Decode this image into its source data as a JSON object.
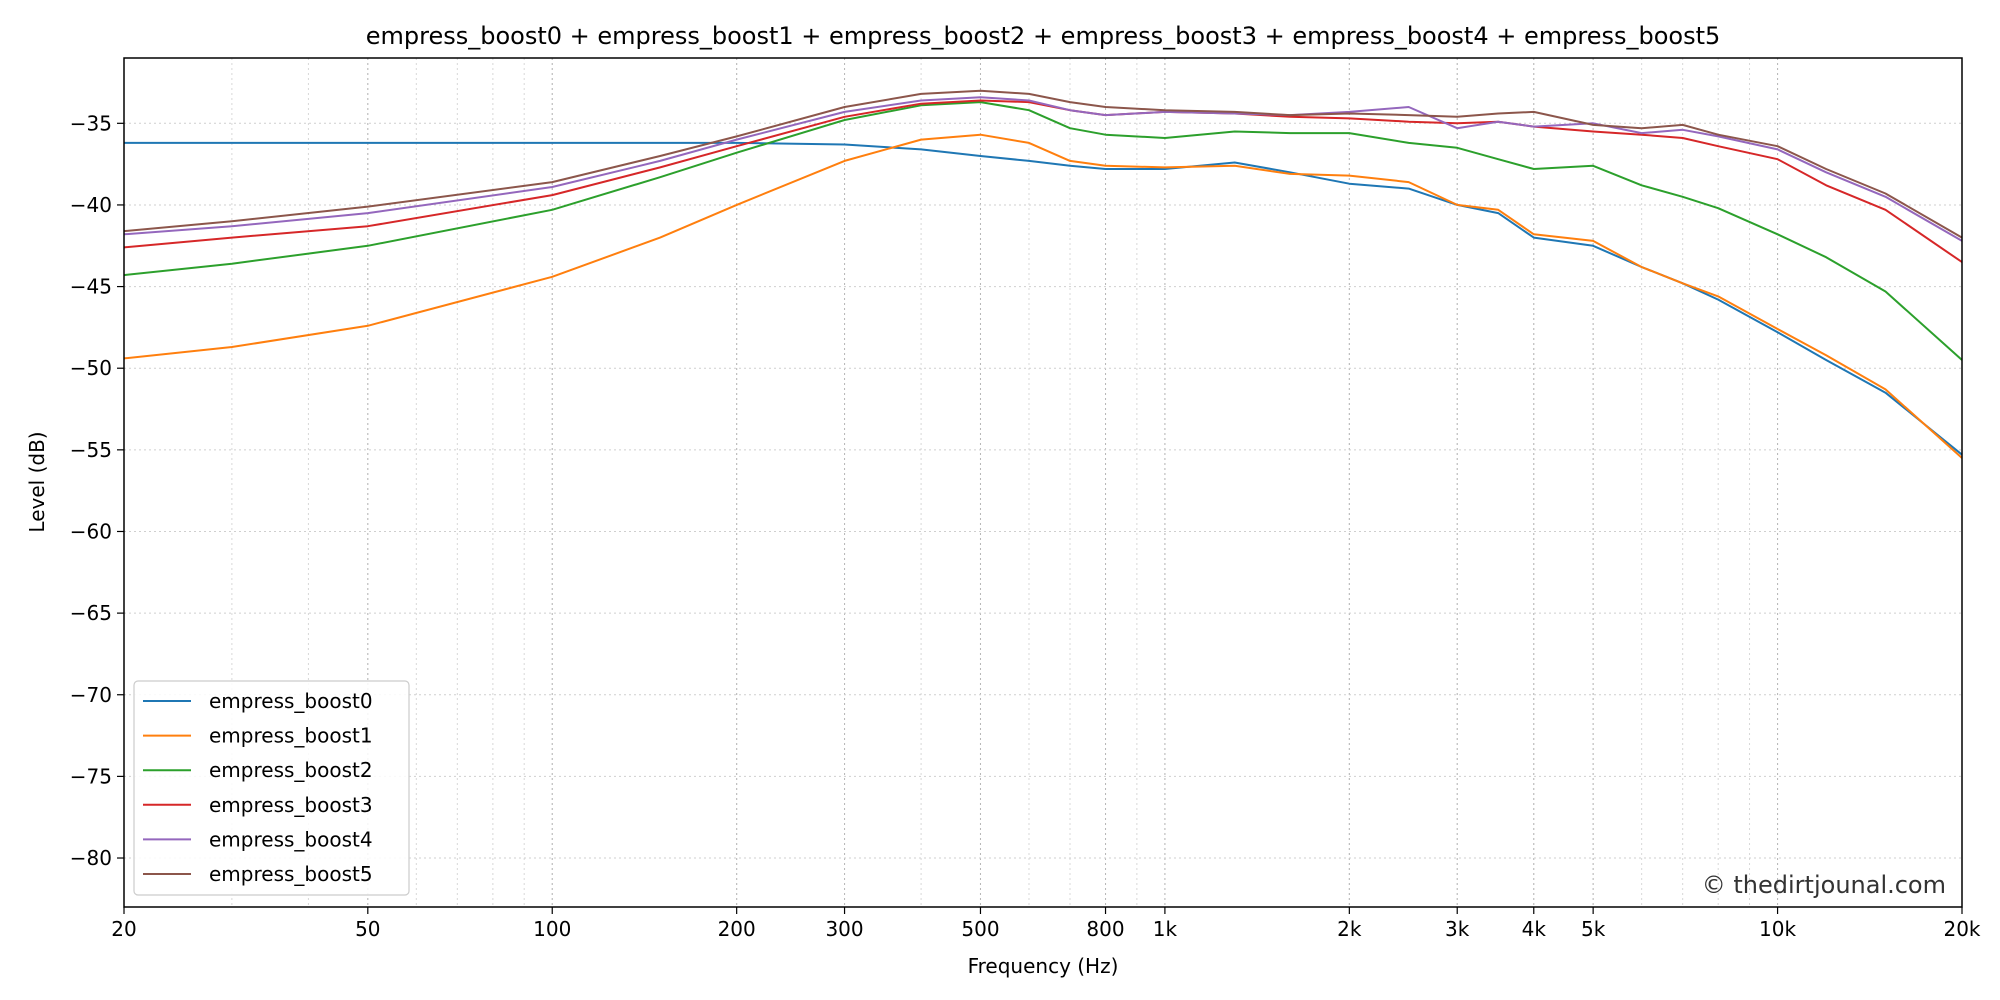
{
  "chart_data": {
    "type": "line",
    "title": "empress_boost0 + empress_boost1 + empress_boost2 + empress_boost3 + empress_boost4 + empress_boost5",
    "xlabel": "Frequency (Hz)",
    "ylabel": "Level (dB)",
    "x_scale": "log",
    "xlim": [
      20,
      20000
    ],
    "ylim": [
      -83,
      -31
    ],
    "x_ticks": [
      {
        "value": 20,
        "label": "20"
      },
      {
        "value": 50,
        "label": "50"
      },
      {
        "value": 100,
        "label": "100"
      },
      {
        "value": 200,
        "label": "200"
      },
      {
        "value": 300,
        "label": "300"
      },
      {
        "value": 500,
        "label": "500"
      },
      {
        "value": 800,
        "label": "800"
      },
      {
        "value": 1000,
        "label": "1k"
      },
      {
        "value": 2000,
        "label": "2k"
      },
      {
        "value": 3000,
        "label": "3k"
      },
      {
        "value": 4000,
        "label": "4k"
      },
      {
        "value": 5000,
        "label": "5k"
      },
      {
        "value": 10000,
        "label": "10k"
      },
      {
        "value": 20000,
        "label": "20k"
      }
    ],
    "y_ticks": [
      {
        "value": -35,
        "label": "−35"
      },
      {
        "value": -40,
        "label": "−40"
      },
      {
        "value": -45,
        "label": "−45"
      },
      {
        "value": -50,
        "label": "−50"
      },
      {
        "value": -55,
        "label": "−55"
      },
      {
        "value": -60,
        "label": "−60"
      },
      {
        "value": -65,
        "label": "−65"
      },
      {
        "value": -70,
        "label": "−70"
      },
      {
        "value": -75,
        "label": "−75"
      },
      {
        "value": -80,
        "label": "−80"
      }
    ],
    "grid": true,
    "legend_position": "lower-left",
    "watermark": "© thedirtjounal.com",
    "x": [
      20,
      30,
      50,
      100,
      150,
      200,
      300,
      400,
      500,
      600,
      700,
      800,
      1000,
      1300,
      1600,
      2000,
      2500,
      3000,
      3500,
      4000,
      5000,
      6000,
      7000,
      8000,
      10000,
      12000,
      15000,
      20000
    ],
    "series": [
      {
        "name": "empress_boost0",
        "color": "#1f77b4",
        "values": [
          -36.2,
          -36.2,
          -36.2,
          -36.2,
          -36.2,
          -36.2,
          -36.3,
          -36.6,
          -37.0,
          -37.3,
          -37.6,
          -37.8,
          -37.8,
          -37.4,
          -38.0,
          -38.7,
          -39.0,
          -40.0,
          -40.5,
          -42.0,
          -42.5,
          -43.8,
          -44.8,
          -45.8,
          -47.8,
          -49.5,
          -51.5,
          -55.3
        ]
      },
      {
        "name": "empress_boost1",
        "color": "#ff7f0e",
        "values": [
          -49.4,
          -48.7,
          -47.4,
          -44.4,
          -42.0,
          -40.0,
          -37.3,
          -36.0,
          -35.7,
          -36.2,
          -37.3,
          -37.6,
          -37.7,
          -37.6,
          -38.1,
          -38.2,
          -38.6,
          -40.0,
          -40.3,
          -41.8,
          -42.2,
          -43.8,
          -44.8,
          -45.6,
          -47.6,
          -49.2,
          -51.3,
          -55.5
        ]
      },
      {
        "name": "empress_boost2",
        "color": "#2ca02c",
        "values": [
          -44.3,
          -43.6,
          -42.5,
          -40.3,
          -38.3,
          -36.8,
          -34.8,
          -33.9,
          -33.7,
          -34.2,
          -35.3,
          -35.7,
          -35.9,
          -35.5,
          -35.6,
          -35.6,
          -36.2,
          -36.5,
          -37.2,
          -37.8,
          -37.6,
          -38.8,
          -39.5,
          -40.2,
          -41.8,
          -43.2,
          -45.3,
          -49.5
        ]
      },
      {
        "name": "empress_boost3",
        "color": "#d62728",
        "values": [
          -42.6,
          -42.0,
          -41.3,
          -39.4,
          -37.7,
          -36.4,
          -34.6,
          -33.8,
          -33.6,
          -33.7,
          -34.2,
          -34.5,
          -34.3,
          -34.4,
          -34.6,
          -34.7,
          -34.9,
          -35.0,
          -34.9,
          -35.2,
          -35.5,
          -35.7,
          -35.9,
          -36.4,
          -37.2,
          -38.8,
          -40.3,
          -43.5
        ]
      },
      {
        "name": "empress_boost4",
        "color": "#9467bd",
        "values": [
          -41.8,
          -41.3,
          -40.5,
          -38.9,
          -37.3,
          -36.0,
          -34.3,
          -33.6,
          -33.4,
          -33.6,
          -34.2,
          -34.5,
          -34.3,
          -34.4,
          -34.5,
          -34.3,
          -34.0,
          -35.3,
          -34.9,
          -35.2,
          -35.0,
          -35.6,
          -35.4,
          -35.8,
          -36.6,
          -38.0,
          -39.5,
          -42.2
        ]
      },
      {
        "name": "empress_boost5",
        "color": "#8c564b",
        "values": [
          -41.6,
          -41.0,
          -40.1,
          -38.6,
          -37.0,
          -35.8,
          -34.0,
          -33.2,
          -33.0,
          -33.2,
          -33.7,
          -34.0,
          -34.2,
          -34.3,
          -34.5,
          -34.4,
          -34.5,
          -34.6,
          -34.4,
          -34.3,
          -35.1,
          -35.3,
          -35.1,
          -35.7,
          -36.4,
          -37.8,
          -39.3,
          -42.0
        ]
      }
    ]
  }
}
